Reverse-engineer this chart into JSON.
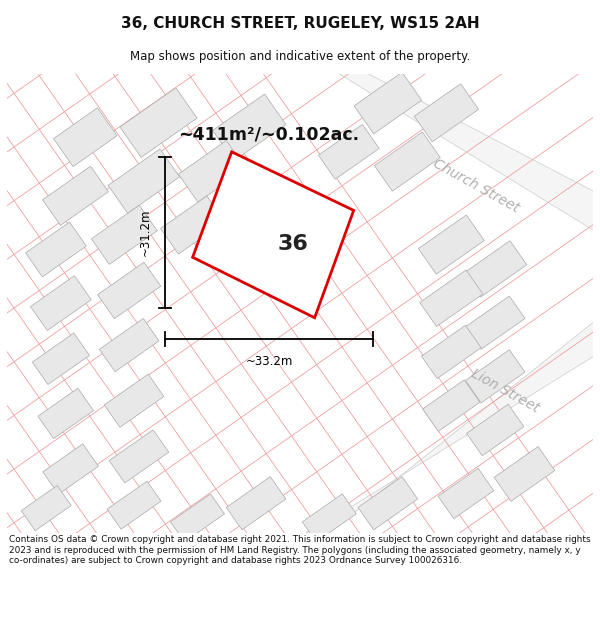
{
  "title": "36, CHURCH STREET, RUGELEY, WS15 2AH",
  "subtitle": "Map shows position and indicative extent of the property.",
  "area_label": "~411m²/~0.102ac.",
  "plot_number": "36",
  "dim_width": "~33.2m",
  "dim_height": "~31.2m",
  "street1": "Church Street",
  "street2": "Lion Street",
  "footer": "Contains OS data © Crown copyright and database right 2021. This information is subject to Crown copyright and database rights 2023 and is reproduced with the permission of HM Land Registry. The polygons (including the associated geometry, namely x, y co-ordinates) are subject to Crown copyright and database rights 2023 Ordnance Survey 100026316.",
  "map_bg": "#ffffff",
  "plot_fill": "#ffffff",
  "plot_edge": "#dd0000",
  "bldg_fill": "#e8e8e8",
  "bldg_edge": "#aaaaaa",
  "parcel_line": "#f0a0a0",
  "street_color": "#b0b0b0",
  "title_color": "#111111",
  "footer_color": "#111111",
  "dim_line_color": "#000000"
}
